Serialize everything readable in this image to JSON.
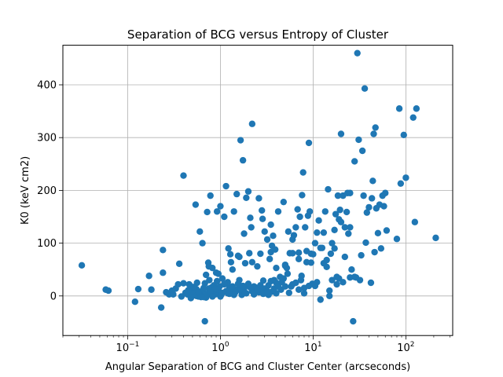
{
  "chart_data": {
    "type": "scatter",
    "title": "Separation of BCG versus Entropy of Cluster",
    "xlabel": "Angular Separation of BCG and Cluster Center (arcseconds)",
    "ylabel": "K0 (keV cm2)",
    "x_scale": "log",
    "xlim": [
      0.02,
      320
    ],
    "ylim": [
      -75,
      475
    ],
    "x_ticks": [
      {
        "value": 0.1,
        "base": "10",
        "exp": "−1"
      },
      {
        "value": 1,
        "base": "10",
        "exp": "0"
      },
      {
        "value": 10,
        "base": "10",
        "exp": "1"
      },
      {
        "value": 100,
        "base": "10",
        "exp": "2"
      }
    ],
    "y_ticks": [
      0,
      100,
      200,
      300,
      400
    ],
    "grid": true,
    "marker_color": "#1f77b4",
    "points": [
      [
        0.032,
        58
      ],
      [
        0.058,
        12
      ],
      [
        0.062,
        10
      ],
      [
        0.12,
        -11
      ],
      [
        0.13,
        13
      ],
      [
        0.17,
        38
      ],
      [
        0.18,
        12
      ],
      [
        0.23,
        -22
      ],
      [
        0.24,
        87
      ],
      [
        0.24,
        44
      ],
      [
        0.26,
        7
      ],
      [
        0.28,
        3
      ],
      [
        0.3,
        10
      ],
      [
        0.31,
        3
      ],
      [
        0.33,
        14
      ],
      [
        0.35,
        22
      ],
      [
        0.36,
        61
      ],
      [
        0.4,
        228
      ],
      [
        0.4,
        24
      ],
      [
        0.38,
        -1
      ],
      [
        0.42,
        6
      ],
      [
        0.44,
        3
      ],
      [
        0.46,
        22
      ],
      [
        0.48,
        18
      ],
      [
        0.5,
        10
      ],
      [
        0.52,
        2
      ],
      [
        0.54,
        173
      ],
      [
        0.55,
        13
      ],
      [
        0.56,
        25
      ],
      [
        0.58,
        -1
      ],
      [
        0.6,
        122
      ],
      [
        0.62,
        4
      ],
      [
        0.64,
        100
      ],
      [
        0.66,
        -2
      ],
      [
        0.68,
        -48
      ],
      [
        0.7,
        40
      ],
      [
        0.72,
        159
      ],
      [
        0.74,
        63
      ],
      [
        0.76,
        30
      ],
      [
        0.78,
        190
      ],
      [
        0.8,
        16
      ],
      [
        0.82,
        53
      ],
      [
        0.85,
        6
      ],
      [
        0.88,
        3
      ],
      [
        0.9,
        44
      ],
      [
        0.92,
        160
      ],
      [
        0.95,
        42
      ],
      [
        0.98,
        18
      ],
      [
        1.0,
        170
      ],
      [
        1.02,
        2
      ],
      [
        1.05,
        33
      ],
      [
        1.1,
        150
      ],
      [
        1.15,
        208
      ],
      [
        1.2,
        5
      ],
      [
        1.22,
        90
      ],
      [
        1.25,
        16
      ],
      [
        1.28,
        79
      ],
      [
        1.3,
        5
      ],
      [
        1.35,
        50
      ],
      [
        1.4,
        160
      ],
      [
        1.45,
        10
      ],
      [
        1.5,
        193
      ],
      [
        1.55,
        76
      ],
      [
        1.6,
        20
      ],
      [
        1.65,
        295
      ],
      [
        1.7,
        2
      ],
      [
        1.75,
        257
      ],
      [
        1.8,
        118
      ],
      [
        1.85,
        62
      ],
      [
        1.9,
        186
      ],
      [
        1.95,
        20
      ],
      [
        2.0,
        198
      ],
      [
        2.05,
        81
      ],
      [
        2.1,
        148
      ],
      [
        2.15,
        130
      ],
      [
        2.2,
        326
      ],
      [
        2.3,
        18
      ],
      [
        2.4,
        11
      ],
      [
        2.5,
        56
      ],
      [
        2.6,
        185
      ],
      [
        2.7,
        80
      ],
      [
        2.8,
        162
      ],
      [
        2.85,
        146
      ],
      [
        2.9,
        29
      ],
      [
        3.0,
        122
      ],
      [
        3.1,
        5
      ],
      [
        3.2,
        107
      ],
      [
        3.3,
        20
      ],
      [
        3.4,
        70
      ],
      [
        3.5,
        135
      ],
      [
        3.6,
        95
      ],
      [
        3.7,
        114
      ],
      [
        3.8,
        30
      ],
      [
        3.9,
        88
      ],
      [
        4.0,
        5
      ],
      [
        4.2,
        160
      ],
      [
        4.4,
        36
      ],
      [
        4.6,
        26
      ],
      [
        4.8,
        178
      ],
      [
        5.0,
        57
      ],
      [
        5.2,
        53
      ],
      [
        5.4,
        122
      ],
      [
        5.6,
        81
      ],
      [
        5.8,
        18
      ],
      [
        6.0,
        107
      ],
      [
        6.2,
        115
      ],
      [
        6.5,
        130
      ],
      [
        6.8,
        164
      ],
      [
        7.0,
        70
      ],
      [
        7.2,
        150
      ],
      [
        7.4,
        30
      ],
      [
        7.6,
        191
      ],
      [
        7.8,
        234
      ],
      [
        8.0,
        5
      ],
      [
        8.2,
        130
      ],
      [
        8.5,
        85
      ],
      [
        8.8,
        152
      ],
      [
        9.0,
        290
      ],
      [
        9.2,
        160
      ],
      [
        9.5,
        80
      ],
      [
        9.8,
        23
      ],
      [
        10.0,
        79
      ],
      [
        10.5,
        19
      ],
      [
        11.0,
        120
      ],
      [
        11.5,
        143
      ],
      [
        12.0,
        -7
      ],
      [
        12.5,
        91
      ],
      [
        13.0,
        120
      ],
      [
        13.5,
        160
      ],
      [
        14.0,
        55
      ],
      [
        14.5,
        202
      ],
      [
        15.0,
        0
      ],
      [
        16.0,
        30
      ],
      [
        17.0,
        90
      ],
      [
        17.5,
        155
      ],
      [
        18.0,
        22
      ],
      [
        18.5,
        190
      ],
      [
        19.0,
        145
      ],
      [
        19.5,
        163
      ],
      [
        20.0,
        307
      ],
      [
        21.0,
        190
      ],
      [
        22.0,
        74
      ],
      [
        23.0,
        159
      ],
      [
        23.5,
        195
      ],
      [
        24.0,
        118
      ],
      [
        25.0,
        195
      ],
      [
        26.0,
        50
      ],
      [
        27.0,
        -48
      ],
      [
        28.0,
        255
      ],
      [
        29.0,
        35
      ],
      [
        30.0,
        460
      ],
      [
        31.0,
        296
      ],
      [
        32.0,
        30
      ],
      [
        33.0,
        77
      ],
      [
        34.0,
        275
      ],
      [
        35.0,
        190
      ],
      [
        36.0,
        393
      ],
      [
        37.0,
        101
      ],
      [
        38.0,
        158
      ],
      [
        40.0,
        168
      ],
      [
        42.0,
        25
      ],
      [
        43.0,
        185
      ],
      [
        44.0,
        218
      ],
      [
        45.0,
        307
      ],
      [
        46.0,
        83
      ],
      [
        47.0,
        319
      ],
      [
        48.0,
        166
      ],
      [
        50.0,
        119
      ],
      [
        52.0,
        173
      ],
      [
        54.0,
        90
      ],
      [
        56.0,
        190
      ],
      [
        58.0,
        170
      ],
      [
        60.0,
        195
      ],
      [
        62.0,
        124
      ],
      [
        80.0,
        108
      ],
      [
        85.0,
        355
      ],
      [
        88.0,
        213
      ],
      [
        95.0,
        305
      ],
      [
        100.0,
        224
      ],
      [
        120.0,
        338
      ],
      [
        125.0,
        140
      ],
      [
        130.0,
        355
      ],
      [
        210.0,
        110
      ],
      [
        0.5,
        5
      ],
      [
        0.55,
        0
      ],
      [
        0.6,
        8
      ],
      [
        0.65,
        12
      ],
      [
        0.7,
        -3
      ],
      [
        0.75,
        14
      ],
      [
        0.8,
        2
      ],
      [
        0.85,
        20
      ],
      [
        0.9,
        8
      ],
      [
        0.95,
        12
      ],
      [
        1.0,
        -1
      ],
      [
        1.05,
        6
      ],
      [
        1.1,
        22
      ],
      [
        1.15,
        9
      ],
      [
        1.2,
        26
      ],
      [
        1.3,
        15
      ],
      [
        1.4,
        2
      ],
      [
        1.5,
        12
      ],
      [
        1.6,
        30
      ],
      [
        1.7,
        8
      ],
      [
        1.8,
        14
      ],
      [
        1.9,
        5
      ],
      [
        2.0,
        23
      ],
      [
        2.2,
        9
      ],
      [
        2.4,
        16
      ],
      [
        2.6,
        7
      ],
      [
        2.8,
        11
      ],
      [
        3.0,
        14
      ],
      [
        3.3,
        2
      ],
      [
        3.6,
        8
      ],
      [
        4.0,
        25
      ],
      [
        4.5,
        12
      ],
      [
        5.0,
        18
      ],
      [
        5.5,
        6
      ],
      [
        6.0,
        22
      ],
      [
        7.0,
        12
      ],
      [
        8.0,
        15
      ],
      [
        9.0,
        19
      ],
      [
        0.45,
        11
      ],
      [
        0.48,
        -4
      ],
      [
        0.52,
        17
      ],
      [
        0.58,
        7
      ],
      [
        0.62,
        -2
      ],
      [
        0.66,
        15
      ],
      [
        0.72,
        4
      ],
      [
        0.78,
        9
      ],
      [
        0.82,
        -1
      ],
      [
        0.88,
        13
      ],
      [
        1.25,
        4
      ],
      [
        1.35,
        18
      ],
      [
        1.45,
        7
      ],
      [
        1.55,
        23
      ],
      [
        1.65,
        11
      ],
      [
        1.75,
        19
      ],
      [
        1.85,
        6
      ],
      [
        2.1,
        16
      ],
      [
        2.3,
        3
      ],
      [
        2.5,
        12
      ],
      [
        2.7,
        20
      ],
      [
        2.9,
        4
      ],
      [
        3.2,
        9
      ],
      [
        3.5,
        28
      ],
      [
        3.8,
        14
      ],
      [
        4.2,
        18
      ],
      [
        4.8,
        33
      ],
      [
        5.3,
        42
      ],
      [
        6.5,
        25
      ],
      [
        7.5,
        38
      ],
      [
        11.0,
        26
      ],
      [
        13.0,
        62
      ],
      [
        15.0,
        10
      ],
      [
        18.0,
        36
      ],
      [
        19.0,
        33
      ],
      [
        21.0,
        26
      ],
      [
        25.0,
        35
      ],
      [
        28.0,
        36
      ],
      [
        16.0,
        100
      ],
      [
        15.5,
        80
      ],
      [
        20.0,
        140
      ],
      [
        22.0,
        130
      ],
      [
        25.0,
        130
      ],
      [
        8.5,
        64
      ],
      [
        9.5,
        63
      ],
      [
        10.5,
        100
      ],
      [
        12.0,
        91
      ],
      [
        14.0,
        68
      ],
      [
        17.0,
        125
      ],
      [
        6.0,
        81
      ],
      [
        7.0,
        82
      ],
      [
        5.0,
        59
      ],
      [
        4.0,
        53
      ],
      [
        3.5,
        83
      ],
      [
        2.2,
        64
      ],
      [
        1.6,
        74
      ],
      [
        1.3,
        64
      ],
      [
        1.1,
        23
      ],
      [
        0.92,
        28
      ],
      [
        0.75,
        56
      ],
      [
        0.68,
        24
      ]
    ]
  }
}
